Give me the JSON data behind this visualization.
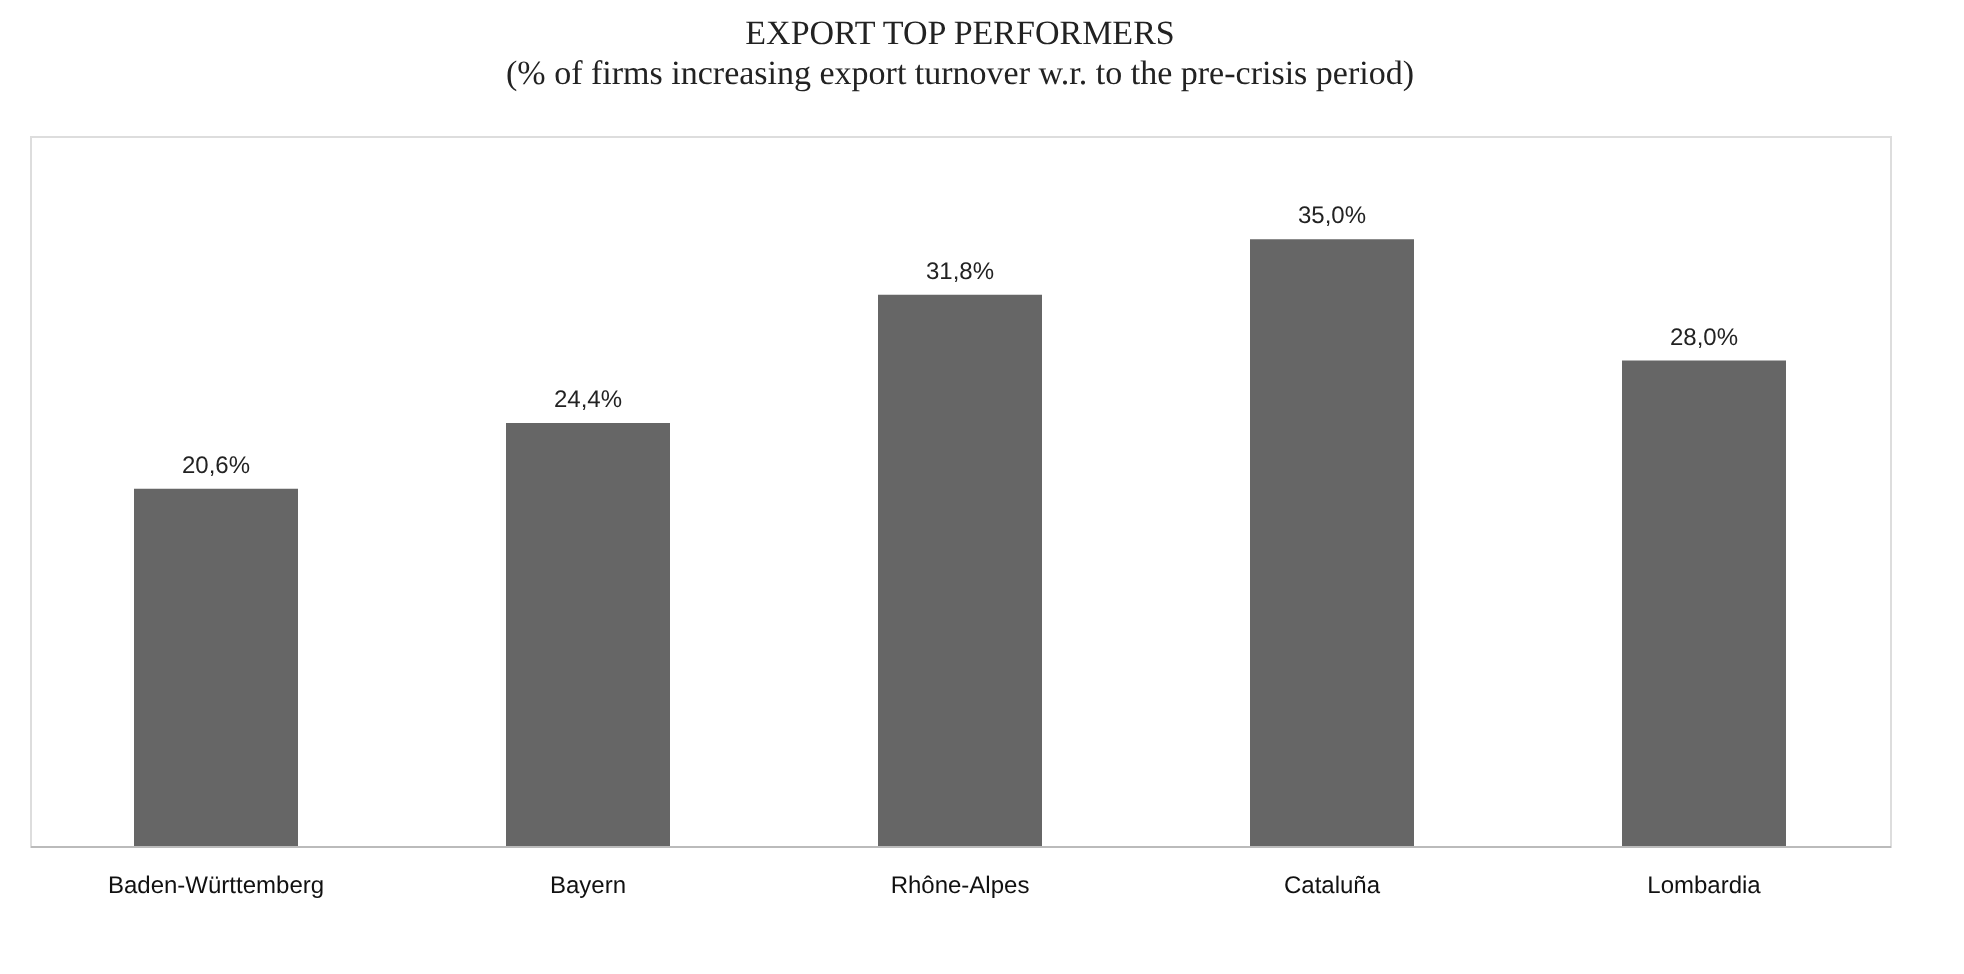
{
  "chart_data": {
    "type": "bar",
    "title": "EXPORT TOP PERFORMERS",
    "subtitle": "(% of firms increasing export turnover w.r. to the pre-crisis period)",
    "categories": [
      "Baden-Württemberg",
      "Bayern",
      "Rhône-Alpes",
      "Cataluña",
      "Lombardia"
    ],
    "values": [
      20.6,
      24.4,
      31.8,
      35.0,
      28.0
    ],
    "value_labels": [
      "20,6%",
      "24,4%",
      "31,8%",
      "35,0%",
      "28,0%"
    ],
    "color": "#666666"
  }
}
